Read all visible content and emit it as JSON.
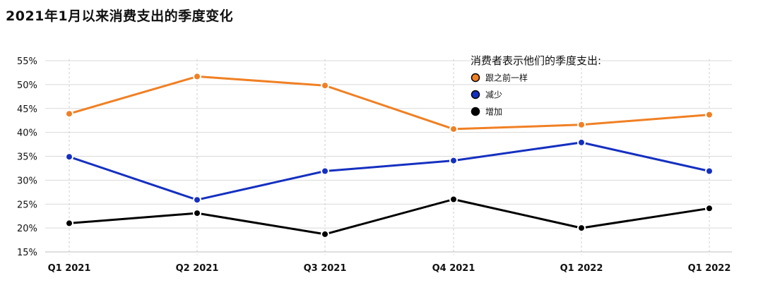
{
  "chart_data": {
    "type": "line",
    "title": "2021年1月以来消费支出的季度变化",
    "xlabel": "",
    "ylabel": "",
    "categories": [
      "Q1 2021",
      "Q2 2021",
      "Q3 2021",
      "Q4 2021",
      "Q1 2022",
      "Q1 2022"
    ],
    "y_ticks": [
      "15%",
      "20%",
      "25%",
      "30%",
      "35%",
      "40%",
      "45%",
      "50%",
      "55%"
    ],
    "ylim": [
      15,
      55
    ],
    "grid": true,
    "legend_title": "消费者表示他们的季度支出:",
    "legend_position": "top-right",
    "series": [
      {
        "name": "跟之前一样",
        "color": "#f08024",
        "values": [
          43.9,
          51.7,
          49.8,
          40.7,
          41.6,
          43.7
        ]
      },
      {
        "name": "减少",
        "color": "#1530c0",
        "values": [
          34.9,
          25.9,
          31.9,
          34.1,
          37.9,
          31.9
        ]
      },
      {
        "name": "增加",
        "color": "#000000",
        "values": [
          21.0,
          23.1,
          18.7,
          26.0,
          20.0,
          24.1
        ]
      }
    ]
  }
}
